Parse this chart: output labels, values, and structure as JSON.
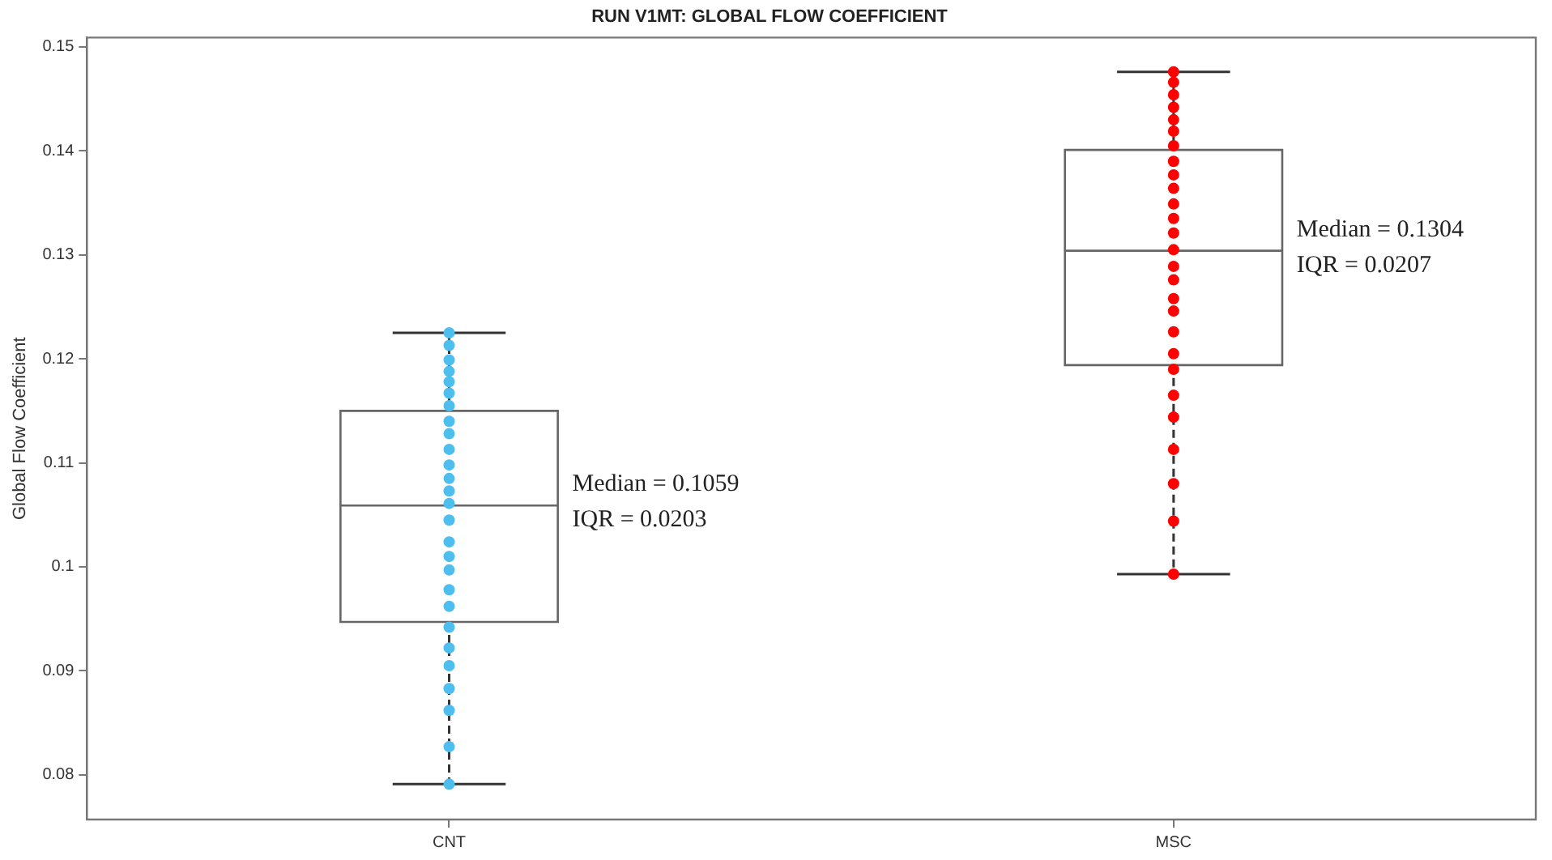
{
  "chart_data": {
    "type": "box",
    "title": "RUN V1MT: GLOBAL FLOW COEFFICIENT",
    "ylabel": "Global Flow Coefficient",
    "categories": [
      "CNT",
      "MSC"
    ],
    "boxes": [
      {
        "low": 0.0791,
        "q1": 0.0947,
        "median": 0.1059,
        "q3": 0.115,
        "high": 0.1225
      },
      {
        "low": 0.0993,
        "q1": 0.1194,
        "median": 0.1304,
        "q3": 0.1401,
        "high": 0.1476
      }
    ],
    "series": [
      {
        "type": "scatter",
        "color": "#4dbeee",
        "x": [
          "CNT",
          "CNT",
          "CNT",
          "CNT",
          "CNT",
          "CNT",
          "CNT",
          "CNT",
          "CNT",
          "CNT",
          "CNT",
          "CNT",
          "CNT",
          "CNT",
          "CNT",
          "CNT",
          "CNT",
          "CNT",
          "CNT",
          "CNT",
          "CNT",
          "CNT",
          "CNT",
          "CNT",
          "CNT",
          "CNT",
          "CNT"
        ],
        "values": [
          0.1225,
          0.1213,
          0.1199,
          0.1188,
          0.1178,
          0.1167,
          0.1155,
          0.114,
          0.1128,
          0.1113,
          0.1098,
          0.1085,
          0.1073,
          0.1061,
          0.1045,
          0.1024,
          0.101,
          0.0997,
          0.0978,
          0.0962,
          0.0942,
          0.0922,
          0.0905,
          0.0883,
          0.0862,
          0.0827,
          0.0791
        ]
      },
      {
        "type": "scatter",
        "color": "#ff0000",
        "x": [
          "MSC",
          "MSC",
          "MSC",
          "MSC",
          "MSC",
          "MSC",
          "MSC",
          "MSC",
          "MSC",
          "MSC",
          "MSC",
          "MSC",
          "MSC",
          "MSC",
          "MSC",
          "MSC",
          "MSC",
          "MSC",
          "MSC",
          "MSC",
          "MSC",
          "MSC",
          "MSC",
          "MSC",
          "MSC",
          "MSC",
          "MSC"
        ],
        "values": [
          0.1476,
          0.1466,
          0.1454,
          0.1442,
          0.143,
          0.1419,
          0.1405,
          0.139,
          0.1377,
          0.1364,
          0.1349,
          0.1335,
          0.1321,
          0.1305,
          0.1289,
          0.1276,
          0.1258,
          0.1246,
          0.1226,
          0.1205,
          0.119,
          0.1165,
          0.1144,
          0.1113,
          0.108,
          0.1044,
          0.0993
        ]
      }
    ],
    "annotations": [
      "Median = 0.1059",
      "IQR = 0.0203",
      "Median = 0.1304",
      "IQR = 0.0207"
    ],
    "ylim": [
      0.0757,
      0.1509
    ],
    "yticks": [
      0.08,
      0.09,
      0.1,
      0.11,
      0.12,
      0.13,
      0.14,
      0.15
    ],
    "marker": "circle",
    "grid": false,
    "legend": false
  }
}
